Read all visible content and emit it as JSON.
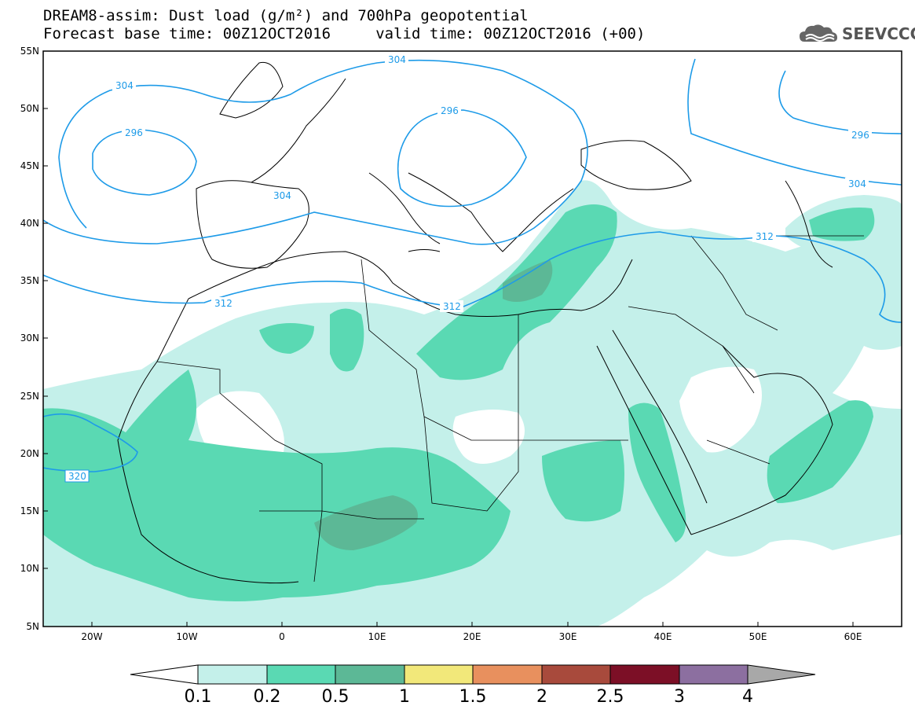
{
  "title": {
    "line1": "DREAM8-assim: Dust load (g/m²) and 700hPa geopotential",
    "line2": "Forecast base time: 00Z12OCT2016     valid time: 00Z12OCT2016 (+00)"
  },
  "logo": {
    "text": "SEEVCCC",
    "icon": "cloud-logo-icon"
  },
  "axes": {
    "lat_labels": [
      "55N",
      "50N",
      "45N",
      "40N",
      "35N",
      "30N",
      "25N",
      "20N",
      "15N",
      "10N",
      "5N"
    ],
    "lon_labels": [
      "20W",
      "10W",
      "0",
      "10E",
      "20E",
      "30E",
      "40E",
      "50E",
      "60E"
    ]
  },
  "contours": {
    "labels": [
      "304",
      "296",
      "296",
      "304",
      "312",
      "312",
      "304",
      "296",
      "304",
      "312",
      "320"
    ],
    "color": "#1e9be8"
  },
  "colorbar": {
    "ticks": [
      "0.1",
      "0.2",
      "0.5",
      "1",
      "1.5",
      "2",
      "2.5",
      "3",
      "4"
    ],
    "colors": [
      "#ffffff",
      "#c4f0ea",
      "#5ad9b3",
      "#5cb896",
      "#f2e87a",
      "#e8905e",
      "#a84a3c",
      "#7c0f26",
      "#8c6fa0",
      "#a8a8a8"
    ]
  },
  "dust_colors": {
    "low": "#c4f0ea",
    "mid": "#5ad9b3",
    "high": "#5cb896"
  }
}
